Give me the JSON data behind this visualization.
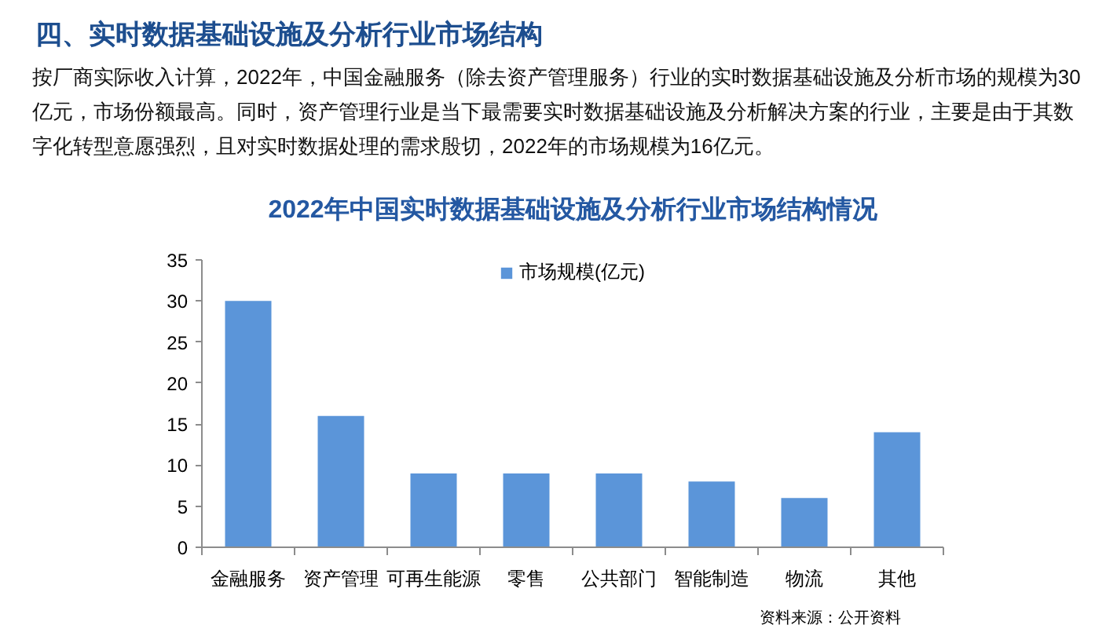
{
  "chart_data": {
    "type": "bar",
    "title": "四、实时数据基础设施及分析行业市场结构",
    "subtitle": "2022年中国实时数据基础设施及分析行业市场结构情况",
    "annotations": [
      "按厂商实际收入计算，2022年，中国金融服务（除去资产管理服务）行业的实时数据基础设施及分析市场的规模为30亿元，市场份额最高。同时，资产管理行业是当下最需要实时数据基础设施及分析解决方案的行业，主要是由于其数字化转型意愿强烈，且对实时数据处理的需求殷切，2022年的市场规模为16亿元。",
      "资料来源：公开资料"
    ],
    "categories": [
      "金融服务",
      "资产管理",
      "可再生能源",
      "零售",
      "公共部门",
      "智能制造",
      "物流",
      "其他"
    ],
    "series": [
      {
        "name": "市场规模(亿元)",
        "color": "#5b95d9",
        "values": [
          30,
          16,
          9,
          9,
          9,
          8,
          6,
          14
        ]
      }
    ],
    "ylim": [
      0,
      35
    ],
    "yticks": [
      0,
      5,
      10,
      15,
      20,
      25,
      30,
      35
    ],
    "legend": "top"
  }
}
